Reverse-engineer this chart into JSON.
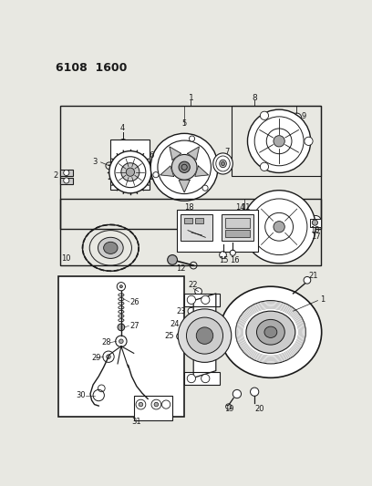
{
  "title": "6108  1600",
  "bg_color": "#e8e8e2",
  "fg_color": "#1a1a1a",
  "fig_width": 4.08,
  "fig_height": 5.33,
  "dpi": 100
}
